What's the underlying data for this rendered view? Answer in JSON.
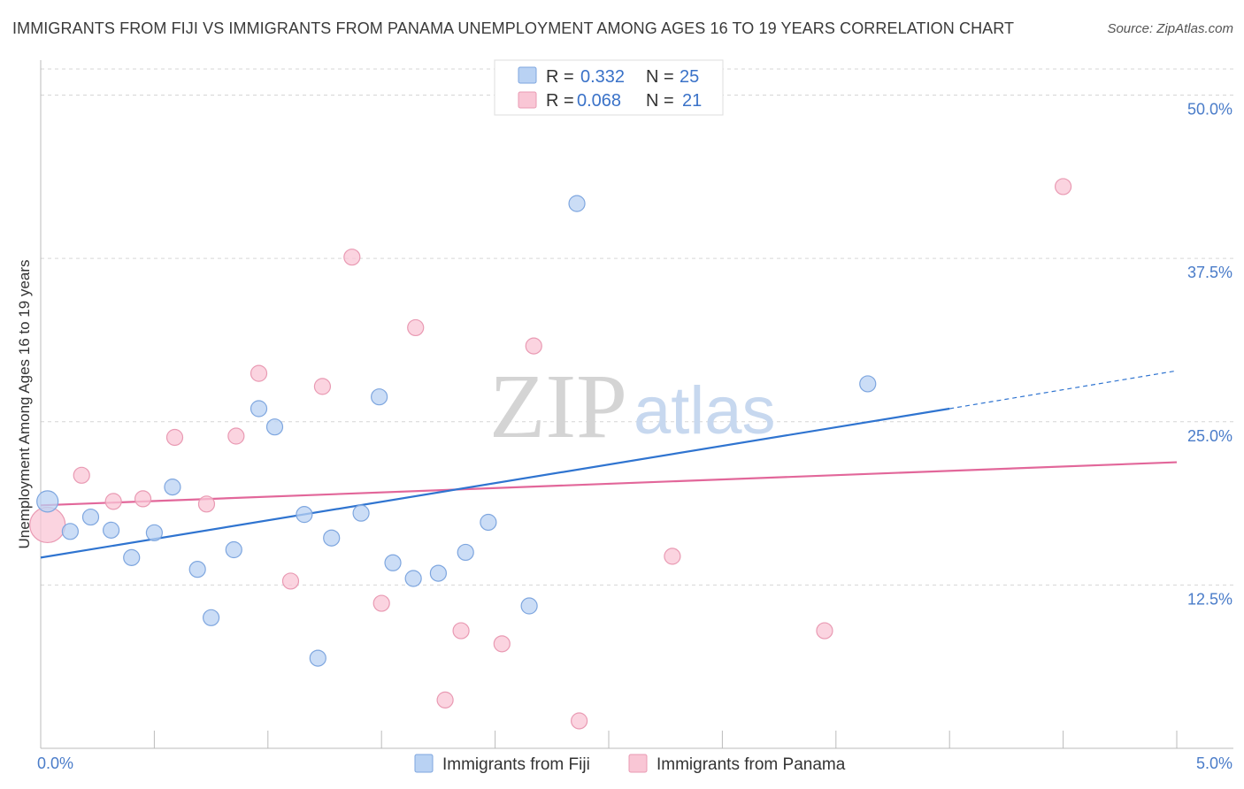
{
  "title": "IMMIGRANTS FROM FIJI VS IMMIGRANTS FROM PANAMA UNEMPLOYMENT AMONG AGES 16 TO 19 YEARS CORRELATION CHART",
  "source": "Source: ZipAtlas.com",
  "watermark": {
    "zip": "ZIP",
    "atlas": "atlas"
  },
  "colors": {
    "fiji_fill": "#b9d2f3",
    "fiji_stroke": "#7ea6df",
    "fiji_line": "#2f74d0",
    "panama_fill": "#f9c6d5",
    "panama_stroke": "#e99ab3",
    "panama_line": "#e2679a",
    "grid": "#d6d6d6",
    "axis": "#bbbbbb"
  },
  "legend": {
    "fiji": {
      "r_label": "R =",
      "r_value": "0.332",
      "n_label": "N =",
      "n_value": "25"
    },
    "panama": {
      "r_label": "R =",
      "r_value": "0.068",
      "n_label": "N =",
      "n_value": "21"
    }
  },
  "chart_data": {
    "type": "scatter",
    "title": "IMMIGRANTS FROM FIJI VS IMMIGRANTS FROM PANAMA UNEMPLOYMENT AMONG AGES 16 TO 19 YEARS CORRELATION CHART",
    "xlabel": "",
    "ylabel": "Unemployment Among Ages 16 to 19 years",
    "xlim": [
      0,
      5
    ],
    "ylim": [
      0,
      52
    ],
    "x_tick_labels": [
      {
        "value": 0,
        "label": "0.0%"
      },
      {
        "value": 5,
        "label": "5.0%"
      }
    ],
    "y_tick_labels": [
      {
        "value": 12.5,
        "label": "12.5%"
      },
      {
        "value": 25,
        "label": "25.0%"
      },
      {
        "value": 37.5,
        "label": "37.5%"
      },
      {
        "value": 50,
        "label": "50.0%"
      }
    ],
    "series": [
      {
        "name": "Immigrants from Fiji",
        "points": [
          {
            "x": 0.03,
            "y": 18.9,
            "big": true
          },
          {
            "x": 0.13,
            "y": 16.6
          },
          {
            "x": 0.22,
            "y": 17.7
          },
          {
            "x": 0.31,
            "y": 16.7
          },
          {
            "x": 0.4,
            "y": 14.6
          },
          {
            "x": 0.5,
            "y": 16.5
          },
          {
            "x": 0.58,
            "y": 20.0
          },
          {
            "x": 0.69,
            "y": 13.7
          },
          {
            "x": 0.75,
            "y": 10.0
          },
          {
            "x": 0.85,
            "y": 15.2
          },
          {
            "x": 0.96,
            "y": 26.0
          },
          {
            "x": 1.03,
            "y": 24.6
          },
          {
            "x": 1.16,
            "y": 17.9
          },
          {
            "x": 1.22,
            "y": 6.9
          },
          {
            "x": 1.28,
            "y": 16.1
          },
          {
            "x": 1.41,
            "y": 18.0
          },
          {
            "x": 1.49,
            "y": 26.9
          },
          {
            "x": 1.55,
            "y": 14.2
          },
          {
            "x": 1.64,
            "y": 13.0
          },
          {
            "x": 1.75,
            "y": 13.4
          },
          {
            "x": 1.87,
            "y": 15.0
          },
          {
            "x": 1.97,
            "y": 17.3
          },
          {
            "x": 2.15,
            "y": 10.9
          },
          {
            "x": 2.36,
            "y": 41.7
          },
          {
            "x": 3.64,
            "y": 27.9
          }
        ],
        "trend": {
          "x0": 0,
          "y0": 14.6,
          "x1": 4.0,
          "y1": 26.0,
          "dashed_to_x": 5.0,
          "dashed_to_y": 28.9
        }
      },
      {
        "name": "Immigrants from Panama",
        "points": [
          {
            "x": 0.03,
            "y": 17.1,
            "big": true
          },
          {
            "x": 0.18,
            "y": 20.9
          },
          {
            "x": 0.32,
            "y": 18.9
          },
          {
            "x": 0.45,
            "y": 19.1
          },
          {
            "x": 0.59,
            "y": 23.8
          },
          {
            "x": 0.73,
            "y": 18.7
          },
          {
            "x": 0.86,
            "y": 23.9
          },
          {
            "x": 0.96,
            "y": 28.7
          },
          {
            "x": 1.1,
            "y": 12.8
          },
          {
            "x": 1.24,
            "y": 27.7
          },
          {
            "x": 1.37,
            "y": 37.6
          },
          {
            "x": 1.5,
            "y": 11.1
          },
          {
            "x": 1.65,
            "y": 32.2
          },
          {
            "x": 1.78,
            "y": 3.7
          },
          {
            "x": 1.85,
            "y": 9.0
          },
          {
            "x": 2.03,
            "y": 8.0
          },
          {
            "x": 2.17,
            "y": 30.8
          },
          {
            "x": 2.37,
            "y": 2.1
          },
          {
            "x": 2.78,
            "y": 14.7
          },
          {
            "x": 3.45,
            "y": 9.0
          },
          {
            "x": 4.5,
            "y": 43.0
          }
        ],
        "trend": {
          "x0": 0,
          "y0": 18.6,
          "x1": 5.0,
          "y1": 21.9
        }
      }
    ]
  },
  "bottom_legend": {
    "fiji_label": "Immigrants from Fiji",
    "panama_label": "Immigrants from Panama"
  }
}
